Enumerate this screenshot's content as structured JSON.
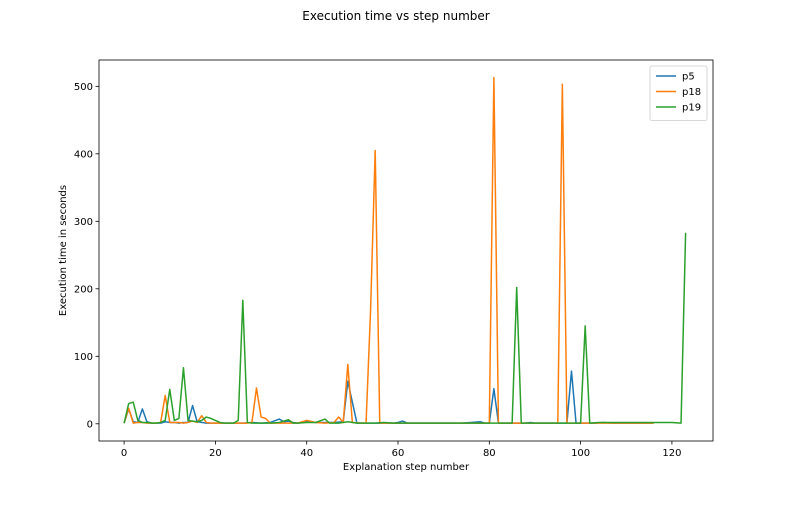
{
  "chart_data": {
    "type": "line",
    "title": "Execution time vs step number",
    "xlabel": "Explanation step number",
    "ylabel": "Execution time in seconds",
    "xlim": [
      -5.5,
      129
    ],
    "ylim": [
      -25.5,
      539
    ],
    "xticks": [
      0,
      20,
      40,
      60,
      80,
      100,
      120
    ],
    "yticks": [
      0,
      100,
      200,
      300,
      400,
      500
    ],
    "grid": false,
    "legend_position": "top-right",
    "series": [
      {
        "name": "p5",
        "color": "#1f77b4",
        "points": [
          [
            0,
            1
          ],
          [
            1,
            22
          ],
          [
            2,
            3
          ],
          [
            3,
            2
          ],
          [
            4,
            22
          ],
          [
            5,
            3
          ],
          [
            6,
            1
          ],
          [
            7,
            1
          ],
          [
            8,
            1
          ],
          [
            9,
            3
          ],
          [
            10,
            2
          ],
          [
            11,
            2
          ],
          [
            12,
            1
          ],
          [
            13,
            2
          ],
          [
            14,
            2
          ],
          [
            15,
            27
          ],
          [
            16,
            3
          ],
          [
            17,
            2
          ],
          [
            18,
            1
          ],
          [
            20,
            1
          ],
          [
            22,
            1
          ],
          [
            24,
            1
          ],
          [
            26,
            1
          ],
          [
            28,
            2
          ],
          [
            30,
            1
          ],
          [
            32,
            2
          ],
          [
            34,
            7
          ],
          [
            35,
            3
          ],
          [
            36,
            4
          ],
          [
            37,
            2
          ],
          [
            38,
            1
          ],
          [
            40,
            3
          ],
          [
            42,
            2
          ],
          [
            44,
            2
          ],
          [
            46,
            2
          ],
          [
            48,
            3
          ],
          [
            49,
            63
          ],
          [
            50,
            32
          ],
          [
            51,
            1
          ],
          [
            53,
            1
          ],
          [
            55,
            1
          ],
          [
            57,
            1
          ],
          [
            59,
            1
          ],
          [
            60,
            2
          ],
          [
            61,
            4
          ],
          [
            62,
            1
          ],
          [
            64,
            1
          ],
          [
            66,
            1
          ],
          [
            68,
            1
          ],
          [
            70,
            1
          ],
          [
            72,
            1
          ],
          [
            74,
            1
          ],
          [
            76,
            2
          ],
          [
            78,
            3
          ],
          [
            79,
            1
          ],
          [
            80,
            1
          ],
          [
            81,
            52
          ],
          [
            82,
            1
          ],
          [
            84,
            1
          ],
          [
            86,
            1
          ],
          [
            88,
            1
          ],
          [
            89,
            2
          ],
          [
            90,
            1
          ],
          [
            92,
            1
          ],
          [
            94,
            1
          ],
          [
            96,
            1
          ],
          [
            97,
            1
          ],
          [
            98,
            78
          ],
          [
            99,
            1
          ],
          [
            101,
            1
          ],
          [
            103,
            1
          ],
          [
            105,
            2
          ],
          [
            107,
            1
          ],
          [
            109,
            1
          ],
          [
            111,
            1
          ],
          [
            113,
            1
          ],
          [
            115,
            1
          ],
          [
            116,
            1
          ]
        ]
      },
      {
        "name": "p18",
        "color": "#ff7f0e",
        "points": [
          [
            0,
            1
          ],
          [
            1,
            23
          ],
          [
            2,
            1
          ],
          [
            3,
            2
          ],
          [
            4,
            2
          ],
          [
            5,
            1
          ],
          [
            6,
            1
          ],
          [
            7,
            1
          ],
          [
            8,
            2
          ],
          [
            9,
            42
          ],
          [
            10,
            2
          ],
          [
            11,
            2
          ],
          [
            12,
            2
          ],
          [
            13,
            1
          ],
          [
            14,
            2
          ],
          [
            15,
            4
          ],
          [
            16,
            2
          ],
          [
            17,
            12
          ],
          [
            18,
            2
          ],
          [
            19,
            1
          ],
          [
            20,
            1
          ],
          [
            22,
            1
          ],
          [
            24,
            1
          ],
          [
            26,
            1
          ],
          [
            27,
            1
          ],
          [
            28,
            2
          ],
          [
            29,
            53
          ],
          [
            30,
            10
          ],
          [
            31,
            8
          ],
          [
            32,
            1
          ],
          [
            34,
            1
          ],
          [
            36,
            1
          ],
          [
            38,
            1
          ],
          [
            40,
            5
          ],
          [
            42,
            2
          ],
          [
            44,
            1
          ],
          [
            46,
            2
          ],
          [
            47,
            10
          ],
          [
            48,
            2
          ],
          [
            49,
            88
          ],
          [
            50,
            2
          ],
          [
            52,
            1
          ],
          [
            53,
            1
          ],
          [
            54,
            170
          ],
          [
            55,
            405
          ],
          [
            56,
            1
          ],
          [
            58,
            1
          ],
          [
            60,
            1
          ],
          [
            62,
            1
          ],
          [
            64,
            1
          ],
          [
            66,
            1
          ],
          [
            68,
            1
          ],
          [
            70,
            1
          ],
          [
            72,
            1
          ],
          [
            74,
            1
          ],
          [
            76,
            1
          ],
          [
            78,
            1
          ],
          [
            80,
            1
          ],
          [
            81,
            513
          ],
          [
            82,
            1
          ],
          [
            84,
            1
          ],
          [
            86,
            1
          ],
          [
            88,
            1
          ],
          [
            90,
            1
          ],
          [
            92,
            1
          ],
          [
            94,
            1
          ],
          [
            95,
            1
          ],
          [
            96,
            503
          ],
          [
            97,
            1
          ],
          [
            99,
            1
          ],
          [
            101,
            1
          ],
          [
            103,
            1
          ],
          [
            105,
            1
          ],
          [
            107,
            1
          ],
          [
            109,
            1
          ],
          [
            111,
            1
          ],
          [
            113,
            1
          ],
          [
            115,
            1
          ],
          [
            116,
            1
          ]
        ]
      },
      {
        "name": "p19",
        "color": "#2ca02c",
        "points": [
          [
            0,
            1
          ],
          [
            1,
            30
          ],
          [
            2,
            32
          ],
          [
            3,
            5
          ],
          [
            4,
            2
          ],
          [
            5,
            2
          ],
          [
            6,
            1
          ],
          [
            7,
            1
          ],
          [
            8,
            2
          ],
          [
            9,
            5
          ],
          [
            10,
            51
          ],
          [
            11,
            5
          ],
          [
            12,
            8
          ],
          [
            13,
            83
          ],
          [
            14,
            5
          ],
          [
            15,
            4
          ],
          [
            16,
            3
          ],
          [
            17,
            5
          ],
          [
            18,
            10
          ],
          [
            19,
            8
          ],
          [
            20,
            5
          ],
          [
            21,
            2
          ],
          [
            22,
            1
          ],
          [
            24,
            1
          ],
          [
            25,
            5
          ],
          [
            26,
            183
          ],
          [
            27,
            2
          ],
          [
            28,
            1
          ],
          [
            30,
            1
          ],
          [
            32,
            1
          ],
          [
            34,
            2
          ],
          [
            36,
            6
          ],
          [
            37,
            1
          ],
          [
            38,
            1
          ],
          [
            40,
            2
          ],
          [
            42,
            2
          ],
          [
            44,
            7
          ],
          [
            45,
            1
          ],
          [
            47,
            1
          ],
          [
            49,
            3
          ],
          [
            51,
            1
          ],
          [
            53,
            1
          ],
          [
            55,
            1
          ],
          [
            57,
            2
          ],
          [
            59,
            1
          ],
          [
            61,
            1
          ],
          [
            63,
            1
          ],
          [
            65,
            1
          ],
          [
            67,
            1
          ],
          [
            69,
            1
          ],
          [
            71,
            1
          ],
          [
            73,
            1
          ],
          [
            75,
            1
          ],
          [
            77,
            1
          ],
          [
            79,
            1
          ],
          [
            81,
            1
          ],
          [
            83,
            1
          ],
          [
            85,
            1
          ],
          [
            86,
            202
          ],
          [
            87,
            1
          ],
          [
            89,
            1
          ],
          [
            91,
            1
          ],
          [
            93,
            1
          ],
          [
            95,
            1
          ],
          [
            97,
            1
          ],
          [
            99,
            1
          ],
          [
            100,
            1
          ],
          [
            101,
            145
          ],
          [
            102,
            1
          ],
          [
            104,
            2
          ],
          [
            106,
            2
          ],
          [
            108,
            2
          ],
          [
            110,
            2
          ],
          [
            112,
            2
          ],
          [
            114,
            2
          ],
          [
            116,
            2
          ],
          [
            118,
            2
          ],
          [
            120,
            2
          ],
          [
            122,
            1
          ],
          [
            123,
            283
          ]
        ]
      }
    ]
  }
}
